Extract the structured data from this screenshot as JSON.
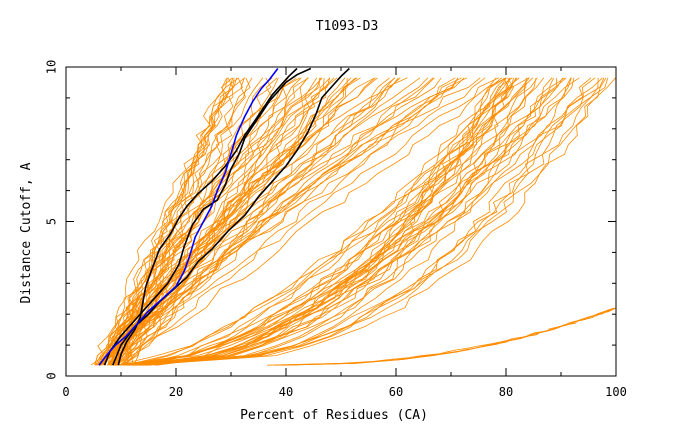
{
  "chart_data": {
    "type": "line",
    "title": "T1093-D3",
    "xlabel": "Percent of Residues (CA)",
    "ylabel": "Distance Cutoff, A",
    "xlim": [
      0,
      100
    ],
    "ylim": [
      0,
      10
    ],
    "x_ticks": [
      0,
      20,
      40,
      60,
      80,
      100
    ],
    "y_ticks": [
      0,
      5,
      10
    ],
    "grid": false,
    "legend": "none",
    "colors": {
      "background_series": "#ff8c00",
      "highlight_black": "#000000",
      "highlight_blue": "#0000ff",
      "axis": "#000000"
    },
    "background_series_count": 110,
    "highlight_series": [
      {
        "color": "#000000",
        "points": [
          [
            8.5,
            0.35
          ],
          [
            10,
            1.0
          ],
          [
            12.5,
            1.6
          ],
          [
            15,
            2.0
          ],
          [
            17,
            2.4
          ],
          [
            19.5,
            2.8
          ],
          [
            22,
            3.2
          ],
          [
            24,
            3.7
          ],
          [
            26.5,
            4.1
          ],
          [
            29.5,
            4.7
          ],
          [
            32.5,
            5.2
          ],
          [
            35,
            5.8
          ],
          [
            37.5,
            6.3
          ],
          [
            40,
            6.8
          ],
          [
            42,
            7.3
          ],
          [
            44,
            7.9
          ],
          [
            45.5,
            8.5
          ],
          [
            46.5,
            9.0
          ],
          [
            48.5,
            9.4
          ],
          [
            50,
            9.7
          ],
          [
            51.5,
            9.95
          ]
        ]
      },
      {
        "color": "#000000",
        "points": [
          [
            7,
            0.35
          ],
          [
            8,
            0.8
          ],
          [
            10,
            1.3
          ],
          [
            12,
            1.7
          ],
          [
            14,
            2.1
          ],
          [
            16,
            2.5
          ],
          [
            18.5,
            3.0
          ],
          [
            20.5,
            3.6
          ],
          [
            21.5,
            4.2
          ],
          [
            23,
            4.9
          ],
          [
            25,
            5.4
          ],
          [
            27.5,
            5.7
          ],
          [
            29,
            6.2
          ],
          [
            30,
            6.7
          ],
          [
            31.5,
            7.2
          ],
          [
            32.5,
            7.7
          ],
          [
            34,
            8.1
          ],
          [
            35.5,
            8.5
          ],
          [
            37,
            8.9
          ],
          [
            38.5,
            9.2
          ],
          [
            40,
            9.5
          ],
          [
            42,
            9.75
          ],
          [
            44.5,
            9.95
          ]
        ]
      },
      {
        "color": "#000000",
        "points": [
          [
            9.5,
            0.35
          ],
          [
            10,
            0.7
          ],
          [
            11,
            1.1
          ],
          [
            12.5,
            1.5
          ],
          [
            13.5,
            1.9
          ],
          [
            14,
            2.4
          ],
          [
            14.5,
            2.9
          ],
          [
            15.5,
            3.4
          ],
          [
            17,
            4.1
          ],
          [
            19,
            4.6
          ],
          [
            20.5,
            5.1
          ],
          [
            22,
            5.5
          ],
          [
            24,
            5.9
          ],
          [
            26.5,
            6.3
          ],
          [
            29,
            6.8
          ],
          [
            31,
            7.3
          ],
          [
            32.5,
            7.8
          ],
          [
            34.5,
            8.3
          ],
          [
            36,
            8.7
          ],
          [
            37.5,
            9.1
          ],
          [
            39,
            9.4
          ],
          [
            40.5,
            9.7
          ],
          [
            42,
            9.95
          ]
        ]
      },
      {
        "color": "#0000ff",
        "points": [
          [
            6,
            0.35
          ],
          [
            7.5,
            0.7
          ],
          [
            9,
            1.0
          ],
          [
            11,
            1.3
          ],
          [
            13,
            1.7
          ],
          [
            15,
            2.1
          ],
          [
            17.5,
            2.5
          ],
          [
            20,
            2.9
          ],
          [
            21.5,
            3.4
          ],
          [
            22.5,
            3.9
          ],
          [
            23.5,
            4.5
          ],
          [
            25,
            5.0
          ],
          [
            26.5,
            5.5
          ],
          [
            27.5,
            6.0
          ],
          [
            29,
            6.6
          ],
          [
            30,
            7.2
          ],
          [
            31,
            7.8
          ],
          [
            32.5,
            8.4
          ],
          [
            34,
            8.9
          ],
          [
            35.5,
            9.3
          ],
          [
            37,
            9.6
          ],
          [
            38.5,
            9.95
          ]
        ]
      }
    ]
  }
}
